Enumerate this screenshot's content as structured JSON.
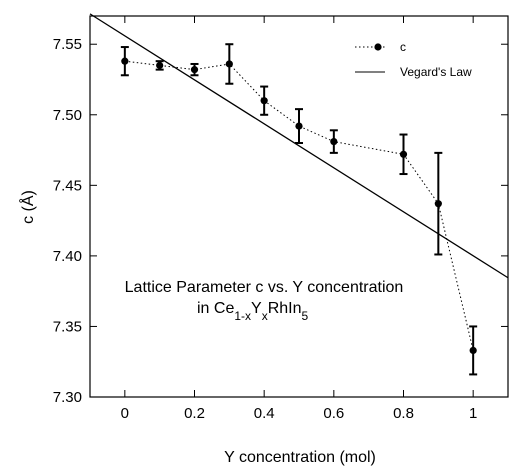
{
  "chart_data": {
    "type": "scatter",
    "xlabel": "Y concentration   (mol)",
    "ylabel": "c  (Å)",
    "xlim": [
      -0.1,
      1.1
    ],
    "ylim": [
      7.3,
      7.57
    ],
    "xticks": [
      0,
      0.2,
      0.4,
      0.6,
      0.8,
      1
    ],
    "xtick_labels": [
      "0",
      "0.2",
      "0.4",
      "0.6",
      "0.8",
      "1"
    ],
    "yticks": [
      7.3,
      7.35,
      7.4,
      7.45,
      7.5,
      7.55
    ],
    "ytick_labels": [
      "7.30",
      "7.35",
      "7.40",
      "7.45",
      "7.50",
      "7.55"
    ],
    "grid": false,
    "legend_position": "top-right",
    "series": [
      {
        "name": "c",
        "style": "points with dotted connecting line and error bars",
        "color": "#000000",
        "x": [
          0,
          0.1,
          0.2,
          0.3,
          0.4,
          0.5,
          0.6,
          0.8,
          0.9,
          1.0
        ],
        "y": [
          7.538,
          7.535,
          7.532,
          7.536,
          7.51,
          7.492,
          7.481,
          7.472,
          7.437,
          7.333
        ],
        "err": [
          0.01,
          0.003,
          0.004,
          0.014,
          0.01,
          0.012,
          0.008,
          0.014,
          0.036,
          0.017
        ]
      },
      {
        "name": "Vegard's Law",
        "style": "solid line",
        "color": "#000000",
        "x": [
          -0.1,
          1.1
        ],
        "y": [
          7.5715,
          7.3845
        ]
      }
    ],
    "annotation": {
      "line1": "Lattice Parameter c  vs. Y concentration",
      "line2_prefix": "in Ce",
      "line2_sub1": "1-x",
      "line2_mid": "Y",
      "line2_sub2": "x",
      "line2_mid2": "RhIn",
      "line2_sub3": "5"
    }
  }
}
